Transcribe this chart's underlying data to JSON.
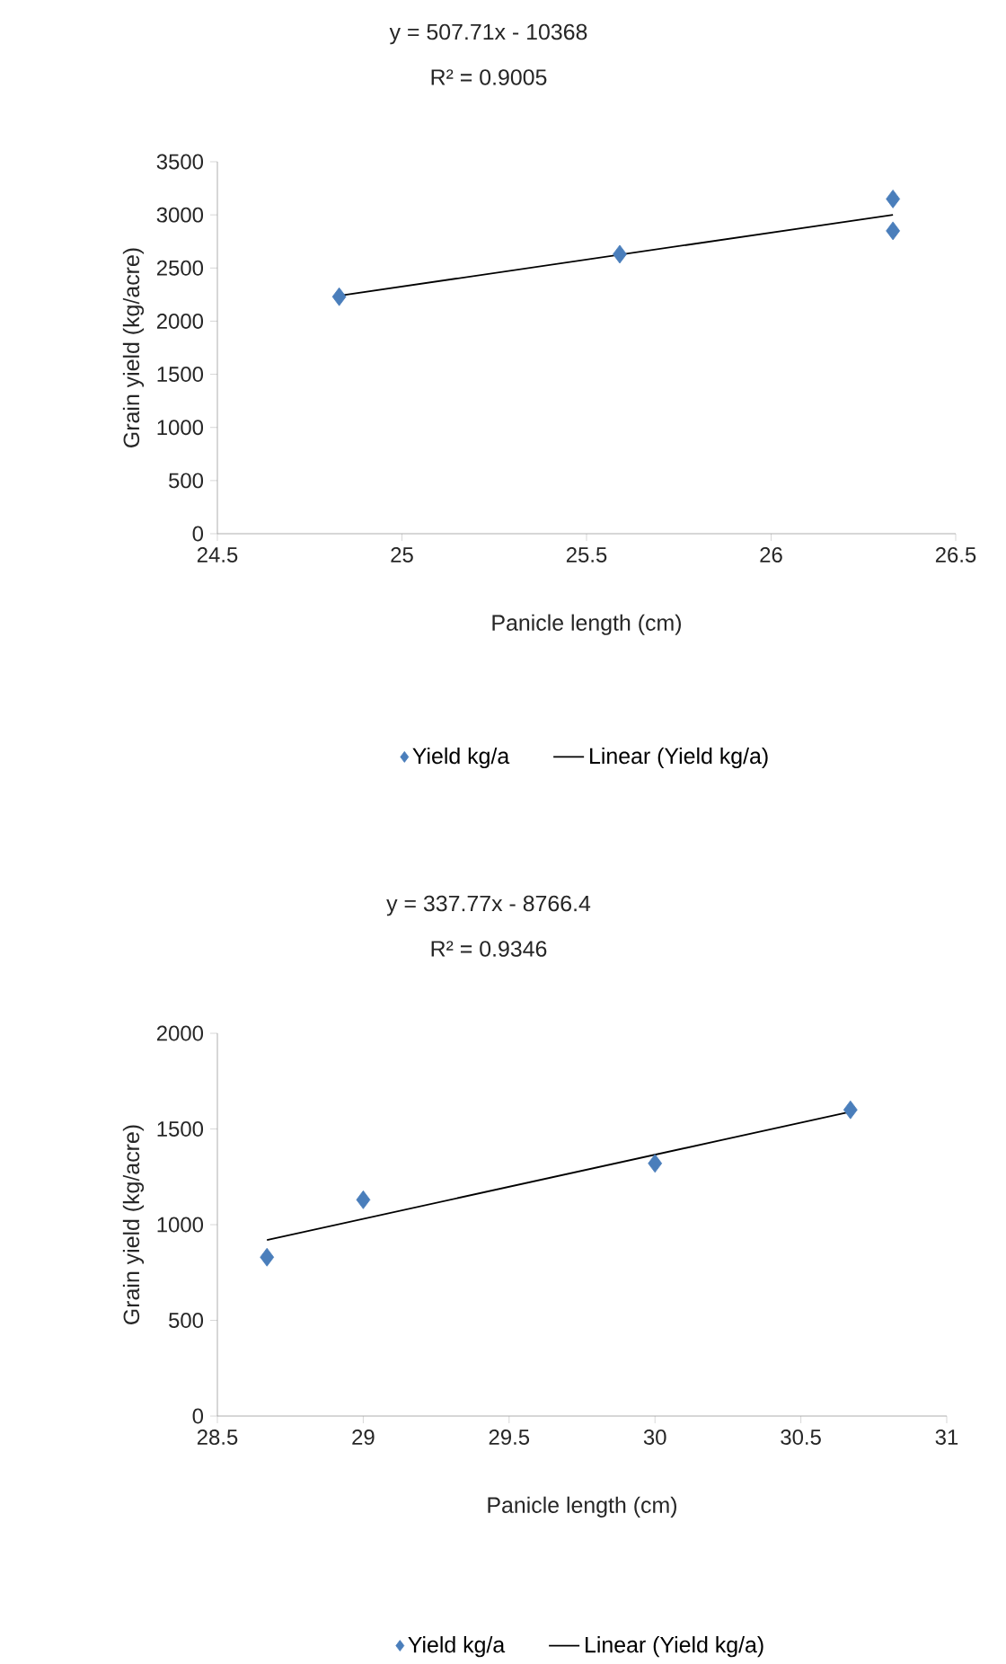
{
  "chart_data": [
    {
      "type": "scatter",
      "annotations": [
        "y = 507.71x - 10368",
        "R² = 0.9005"
      ],
      "xlabel": "Panicle length (cm)",
      "ylabel": "Grain yield (kg/acre)",
      "xlim": [
        24.5,
        26.5
      ],
      "xticks": [
        24.5,
        25,
        25.5,
        26,
        26.5
      ],
      "ylim": [
        0,
        3500
      ],
      "yticks": [
        0,
        500,
        1000,
        1500,
        2000,
        2500,
        3000,
        3500
      ],
      "legend": "bottom",
      "marker": "diamond",
      "series": [
        {
          "name": "Yield kg/a",
          "color": "#4a7ebb",
          "x": [
            24.83,
            25.59,
            26.33,
            26.33
          ],
          "values": [
            2230,
            2630,
            3150,
            2850
          ]
        },
        {
          "name": "Linear (Yield kg/a)",
          "type": "line",
          "marker": "none",
          "color": "#000000",
          "x": [
            24.83,
            26.33
          ],
          "values": [
            2240,
            3000
          ]
        }
      ]
    },
    {
      "type": "scatter",
      "annotations": [
        "y = 337.77x - 8766.4",
        "R² = 0.9346"
      ],
      "xlabel": "Panicle length (cm)",
      "ylabel": "Grain yield (kg/acre)",
      "xlim": [
        28.5,
        31
      ],
      "xticks": [
        28.5,
        29,
        29.5,
        30,
        30.5,
        31
      ],
      "ylim": [
        0,
        2000
      ],
      "yticks": [
        0,
        500,
        1000,
        1500,
        2000
      ],
      "legend": "bottom",
      "marker": "diamond",
      "series": [
        {
          "name": "Yield kg/a",
          "color": "#4a7ebb",
          "x": [
            28.67,
            29.0,
            30.0,
            30.67
          ],
          "values": [
            830,
            1130,
            1320,
            1600
          ]
        },
        {
          "name": "Linear (Yield kg/a)",
          "type": "line",
          "marker": "none",
          "color": "#000000",
          "x": [
            28.67,
            30.67
          ],
          "values": [
            920,
            1590
          ]
        }
      ]
    }
  ]
}
